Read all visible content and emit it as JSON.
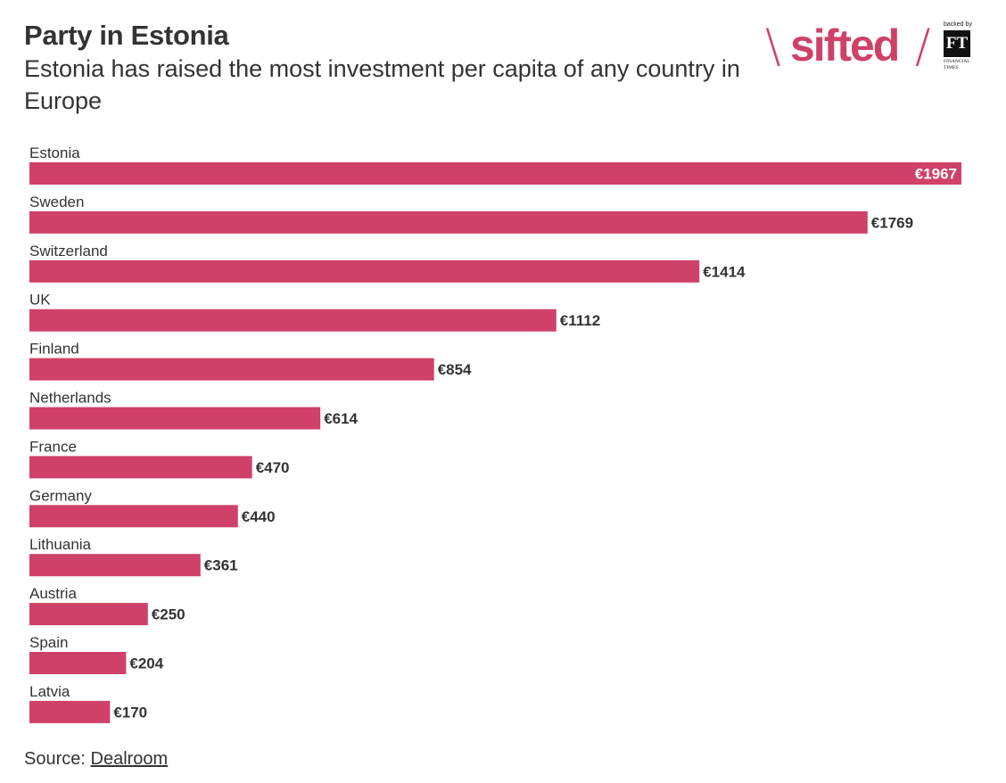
{
  "header": {
    "title": "Party in Estonia",
    "subtitle": "Estonia has raised the most investment per capita of any country in Europe"
  },
  "logo": {
    "wordmark": "sifted",
    "backed_by": "backed by",
    "ft_mark": "FT",
    "ft_name": "FINANCIAL TIMES"
  },
  "footer": {
    "source_label": "Source:",
    "source_link": "Dealroom"
  },
  "colors": {
    "bar": "#cf4168",
    "text": "#333333",
    "inside_label": "#ffffff"
  },
  "chart_data": {
    "type": "bar",
    "orientation": "horizontal",
    "categories": [
      "Estonia",
      "Sweden",
      "Switzerland",
      "UK",
      "Finland",
      "Netherlands",
      "France",
      "Germany",
      "Lithuania",
      "Austria",
      "Spain",
      "Latvia"
    ],
    "values": [
      1967,
      1769,
      1414,
      1112,
      854,
      614,
      470,
      440,
      361,
      250,
      204,
      170
    ],
    "value_labels": [
      "€1967",
      "€1769",
      "€1414",
      "€1112",
      "€854",
      "€614",
      "€470",
      "€440",
      "€361",
      "€250",
      "€204",
      "€170"
    ],
    "value_prefix": "€",
    "xlim": [
      0,
      1967
    ],
    "grid": false,
    "legend": "none"
  }
}
